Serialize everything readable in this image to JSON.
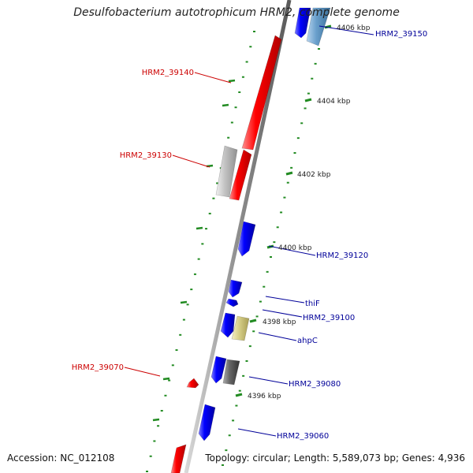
{
  "title": "Desulfobacterium autotrophicum HRM2, complete genome",
  "footer": {
    "accession": "Accession: NC_012108",
    "summary": "Topology: circular; Length: 5,589,073 bp; Genes: 4,936"
  },
  "ticks": [
    {
      "label": "4406 kbp"
    },
    {
      "label": "4404 kbp"
    },
    {
      "label": "4402 kbp"
    },
    {
      "label": "4400 kbp"
    },
    {
      "label": "4398 kbp"
    },
    {
      "label": "4396 kbp"
    }
  ],
  "gene_labels": {
    "reverse_strand": [
      "HRM2_39140",
      "HRM2_39130",
      "HRM2_39070"
    ],
    "forward_strand": [
      "HRM2_39150",
      "HRM2_39120",
      "thiF",
      "HRM2_39100",
      "ahpC",
      "HRM2_39080",
      "HRM2_39060"
    ]
  },
  "colors": {
    "reverse_strand": "#ff0000",
    "forward_strand": "#0000ff",
    "label_reverse": "#cc0000",
    "label_forward": "#000099",
    "backbone": "#999999",
    "ticks": "#228b22",
    "grey_feature": "#bbbbbb",
    "dark_feature": "#666666",
    "khaki_feature": "#d8d08a",
    "steel_feature": "#6aa0cc"
  }
}
